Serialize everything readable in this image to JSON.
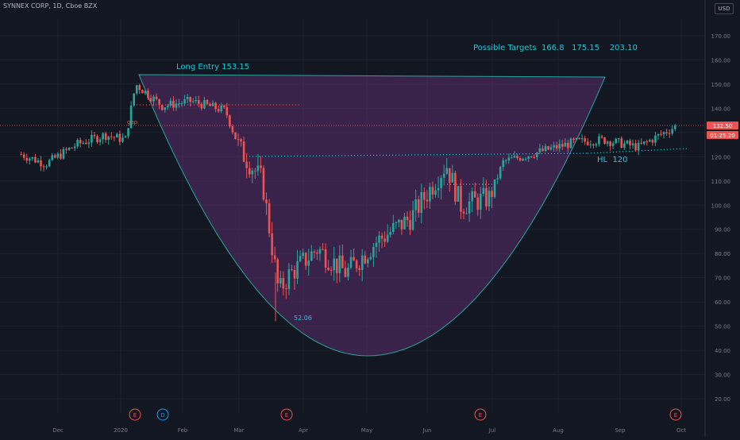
{
  "header": {
    "symbol_title": "SYNNEX CORP, 1D, Cboe BZX",
    "currency": "USD"
  },
  "chart_data": {
    "type": "candlestick",
    "ylim": [
      10,
      180
    ],
    "y_ticks": [
      "20.00",
      "30.00",
      "40.00",
      "50.00",
      "60.00",
      "70.00",
      "80.00",
      "90.00",
      "100.00",
      "110.00",
      "120.00",
      "130.00",
      "140.00",
      "150.00",
      "160.00",
      "170.00"
    ],
    "x_ticks": [
      "Dec",
      "2020",
      "Feb",
      "Mar",
      "Apr",
      "May",
      "Jun",
      "Jul",
      "Aug",
      "Sep",
      "Oct"
    ],
    "last_price": "132.50",
    "countdown": "01:25:20",
    "annotations": {
      "long_entry": "Long Entry 153.15",
      "targets": "Possible Targets  166.8   175.15    203.10",
      "low_label": "52.06",
      "hl_label": "HL  120",
      "gap_label": "gap"
    },
    "event_markers": [
      "E",
      "D",
      "E",
      "E",
      "E"
    ],
    "price_path": [
      {
        "date": "2019-11-13",
        "close": 121
      },
      {
        "date": "2019-11-25",
        "close": 117
      },
      {
        "date": "2019-12-10",
        "close": 125
      },
      {
        "date": "2019-12-24",
        "close": 129
      },
      {
        "date": "2020-01-03",
        "close": 127
      },
      {
        "date": "2020-01-08",
        "close": 150
      },
      {
        "date": "2020-01-21",
        "close": 141
      },
      {
        "date": "2020-02-04",
        "close": 143
      },
      {
        "date": "2020-02-21",
        "close": 139
      },
      {
        "date": "2020-02-28",
        "close": 123
      },
      {
        "date": "2020-03-10",
        "close": 110
      },
      {
        "date": "2020-03-18",
        "close": 64
      },
      {
        "date": "2020-03-23",
        "close": 71
      },
      {
        "date": "2020-04-06",
        "close": 82
      },
      {
        "date": "2020-04-20",
        "close": 72
      },
      {
        "date": "2020-05-05",
        "close": 85
      },
      {
        "date": "2020-05-22",
        "close": 95
      },
      {
        "date": "2020-06-08",
        "close": 117
      },
      {
        "date": "2020-06-15",
        "close": 100
      },
      {
        "date": "2020-06-29",
        "close": 103
      },
      {
        "date": "2020-07-06",
        "close": 118
      },
      {
        "date": "2020-08-10",
        "close": 126
      },
      {
        "date": "2020-08-24",
        "close": 127
      },
      {
        "date": "2020-09-10",
        "close": 124
      },
      {
        "date": "2020-09-28",
        "close": 132.5
      }
    ]
  },
  "colors": {
    "background": "#131722",
    "grid": "#1e222d",
    "up": "#26a69a",
    "down": "#ef5350",
    "cup_fill": "#5a2d6e",
    "cup_stroke": "#26a69a",
    "annotation_text": "#26c6da",
    "last_price_bg": "#ef5350",
    "axis_text": "#787b86"
  }
}
